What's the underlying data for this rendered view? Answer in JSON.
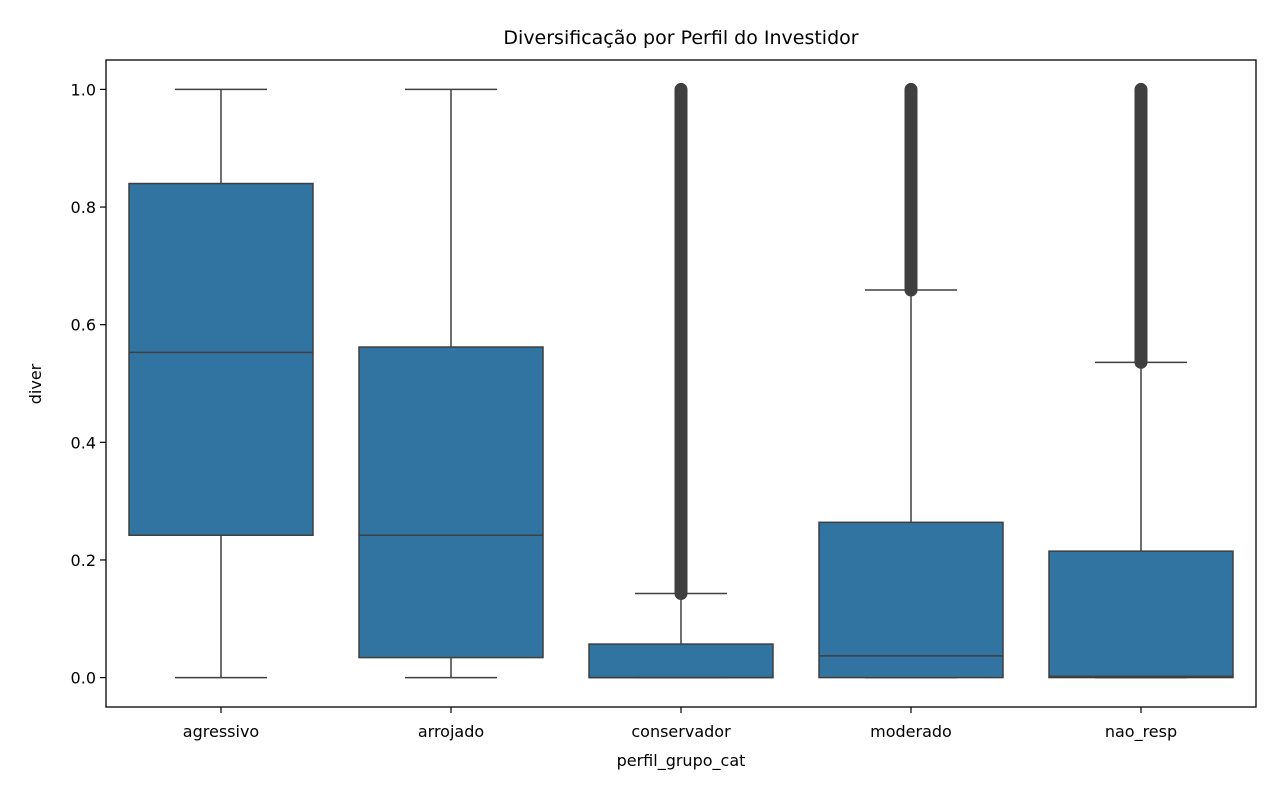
{
  "chart_data": {
    "type": "box",
    "title": "Diversificação por Perfil do Investidor",
    "xlabel": "perfil_grupo_cat",
    "ylabel": "diver",
    "ylim": [
      -0.05,
      1.05
    ],
    "yticks": [
      0.0,
      0.2,
      0.4,
      0.6,
      0.8,
      1.0
    ],
    "ytick_labels": [
      "0.0",
      "0.2",
      "0.4",
      "0.6",
      "0.8",
      "1.0"
    ],
    "grid": false,
    "legend": "none",
    "categories": [
      "agressivo",
      "arrojado",
      "conservador",
      "moderado",
      "nao_resp"
    ],
    "boxes": [
      {
        "category": "agressivo",
        "whisker_low": 0.0,
        "q1": 0.242,
        "median": 0.553,
        "q3": 0.84,
        "whisker_high": 1.0,
        "outliers_from": null,
        "outliers_to": null
      },
      {
        "category": "arrojado",
        "whisker_low": 0.0,
        "q1": 0.034,
        "median": 0.242,
        "q3": 0.562,
        "whisker_high": 1.0,
        "outliers_from": null,
        "outliers_to": null
      },
      {
        "category": "conservador",
        "whisker_low": 0.0,
        "q1": 0.0,
        "median": 0.0,
        "q3": 0.057,
        "whisker_high": 0.143,
        "outliers_from": 0.143,
        "outliers_to": 1.0
      },
      {
        "category": "moderado",
        "whisker_low": 0.0,
        "q1": 0.0,
        "median": 0.037,
        "q3": 0.264,
        "whisker_high": 0.659,
        "outliers_from": 0.659,
        "outliers_to": 1.0
      },
      {
        "category": "nao_resp",
        "whisker_low": 0.0,
        "q1": 0.0,
        "median": 0.002,
        "q3": 0.215,
        "whisker_high": 0.536,
        "outliers_from": 0.536,
        "outliers_to": 1.0
      }
    ],
    "colors": {
      "box_fill": "#3274a1",
      "line": "#3f3f3f",
      "outlier": "#3f3f3f",
      "axes": "#000000"
    }
  }
}
